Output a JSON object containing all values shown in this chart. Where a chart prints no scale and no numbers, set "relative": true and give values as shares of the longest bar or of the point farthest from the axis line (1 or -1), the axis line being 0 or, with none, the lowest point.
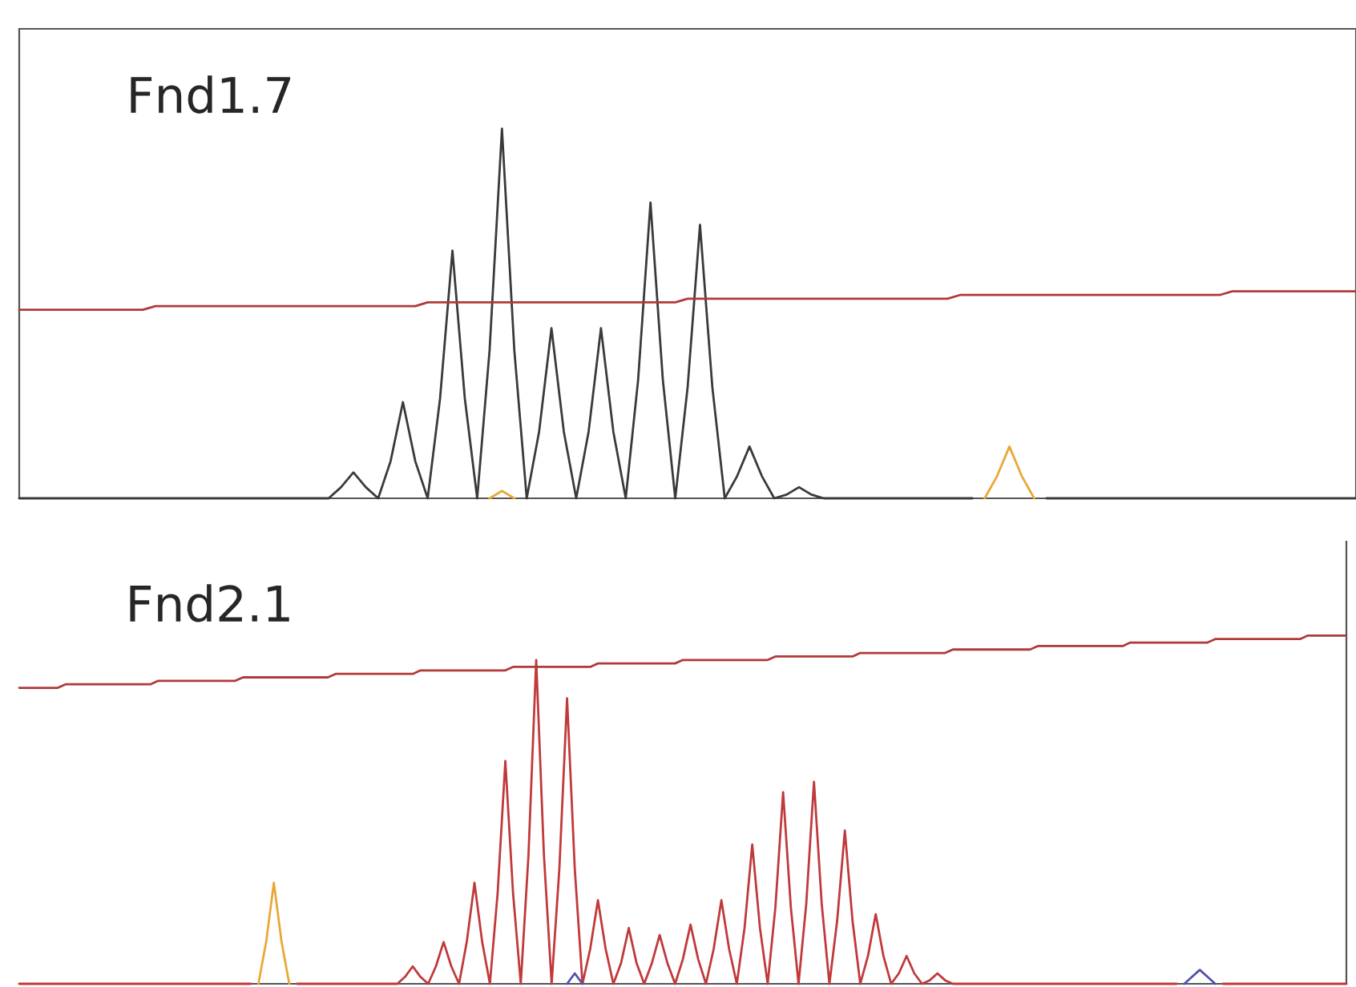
{
  "chart_data": [
    {
      "type": "line",
      "title": "Fnd1.7",
      "relative": true,
      "categories": [
        null,
        null,
        null,
        null,
        null,
        null,
        null,
        null,
        null,
        null,
        null,
        null,
        null,
        null,
        null,
        null,
        null,
        null,
        null,
        null,
        null,
        null,
        null,
        null,
        null,
        null,
        null,
        null,
        null,
        null,
        null,
        null,
        null,
        null,
        null,
        null,
        null,
        null,
        null,
        null,
        null,
        null,
        null,
        null,
        null,
        null,
        null,
        null,
        null,
        null,
        null,
        null,
        null,
        null,
        null,
        null,
        null,
        null,
        null,
        null,
        null,
        null,
        null,
        null,
        null,
        null,
        null,
        null,
        null,
        null,
        null,
        null,
        null,
        null,
        null,
        null,
        null,
        null,
        null,
        null,
        null,
        null,
        null,
        null,
        null,
        null,
        null,
        null,
        null,
        null,
        null,
        null,
        null,
        null,
        null,
        null,
        null,
        null,
        null,
        null,
        null,
        null,
        null,
        null,
        null,
        null,
        null,
        null,
        null
      ],
      "series": [
        {
          "color": "#3a3a3a",
          "values": [
            0,
            0,
            0,
            0,
            0,
            0,
            0,
            0,
            0,
            0,
            0,
            0,
            0,
            0,
            0,
            0,
            0,
            0,
            0,
            0,
            0,
            0,
            0,
            0,
            0,
            0,
            0.03,
            0.07,
            0.03,
            0,
            0.1,
            0.26,
            0.1,
            0,
            0.27,
            0.67,
            0.27,
            0,
            0.4,
            1.0,
            0.4,
            0,
            0.18,
            0.46,
            0.18,
            0,
            0.18,
            0.46,
            0.18,
            0,
            0.32,
            0.8,
            0.32,
            0,
            0.3,
            0.74,
            0.3,
            0,
            0.06,
            0.14,
            0.06,
            0,
            0.01,
            0.03,
            0.01,
            0,
            0,
            0,
            0,
            0,
            0,
            0,
            0,
            0,
            0,
            0,
            0,
            0,
            null,
            null,
            null,
            null,
            null,
            0,
            0,
            0,
            0,
            0,
            0,
            0,
            0,
            0,
            0,
            0,
            0,
            0,
            0,
            0,
            0,
            0,
            0,
            0,
            0,
            0,
            0,
            0,
            0,
            0,
            0
          ]
        },
        {
          "color": "#e8a838",
          "values": [
            null,
            null,
            null,
            null,
            null,
            null,
            null,
            null,
            null,
            null,
            null,
            null,
            null,
            null,
            null,
            null,
            null,
            null,
            null,
            null,
            null,
            null,
            null,
            null,
            null,
            null,
            null,
            null,
            null,
            null,
            null,
            null,
            null,
            null,
            null,
            null,
            null,
            null,
            0,
            0.02,
            0,
            null,
            null,
            null,
            null,
            null,
            null,
            null,
            null,
            null,
            null,
            null,
            null,
            null,
            null,
            null,
            null,
            null,
            null,
            null,
            null,
            null,
            null,
            null,
            null,
            null,
            null,
            null,
            null,
            null,
            null,
            null,
            null,
            null,
            null,
            null,
            null,
            null,
            0,
            0.06,
            0.14,
            0.06,
            0,
            null,
            null,
            null,
            null,
            null,
            null,
            null,
            null,
            null,
            null,
            null,
            null,
            null,
            null,
            null,
            null,
            null,
            null,
            null,
            null,
            null,
            null,
            null,
            null,
            null,
            null
          ]
        },
        {
          "color": "#b03a3a",
          "values": [
            0.51,
            0.51,
            0.51,
            0.51,
            0.51,
            0.51,
            0.51,
            0.51,
            0.51,
            0.51,
            0.51,
            0.52,
            0.52,
            0.52,
            0.52,
            0.52,
            0.52,
            0.52,
            0.52,
            0.52,
            0.52,
            0.52,
            0.52,
            0.52,
            0.52,
            0.52,
            0.52,
            0.52,
            0.52,
            0.52,
            0.52,
            0.52,
            0.52,
            0.53,
            0.53,
            0.53,
            0.53,
            0.53,
            0.53,
            0.53,
            0.53,
            0.53,
            0.53,
            0.53,
            0.53,
            0.53,
            0.53,
            0.53,
            0.53,
            0.53,
            0.53,
            0.53,
            0.53,
            0.53,
            0.54,
            0.54,
            0.54,
            0.54,
            0.54,
            0.54,
            0.54,
            0.54,
            0.54,
            0.54,
            0.54,
            0.54,
            0.54,
            0.54,
            0.54,
            0.54,
            0.54,
            0.54,
            0.54,
            0.54,
            0.54,
            0.54,
            0.55,
            0.55,
            0.55,
            0.55,
            0.55,
            0.55,
            0.55,
            0.55,
            0.55,
            0.55,
            0.55,
            0.55,
            0.55,
            0.55,
            0.55,
            0.55,
            0.55,
            0.55,
            0.55,
            0.55,
            0.55,
            0.55,
            0.56,
            0.56,
            0.56,
            0.56,
            0.56,
            0.56,
            0.56,
            0.56,
            0.56,
            0.56,
            0.56
          ]
        }
      ]
    },
    {
      "type": "line",
      "title": "Fnd2.1",
      "relative": true,
      "categories": [
        null,
        null,
        null,
        null,
        null,
        null,
        null,
        null,
        null,
        null,
        null,
        null,
        null,
        null,
        null,
        null,
        null,
        null,
        null,
        null,
        null,
        null,
        null,
        null,
        null,
        null,
        null,
        null,
        null,
        null,
        null,
        null,
        null,
        null,
        null,
        null,
        null,
        null,
        null,
        null,
        null,
        null,
        null,
        null,
        null,
        null,
        null,
        null,
        null,
        null,
        null,
        null,
        null,
        null,
        null,
        null,
        null,
        null,
        null,
        null,
        null,
        null,
        null,
        null,
        null,
        null,
        null,
        null,
        null,
        null,
        null,
        null,
        null,
        null,
        null,
        null,
        null,
        null,
        null,
        null,
        null,
        null,
        null,
        null,
        null,
        null,
        null,
        null,
        null,
        null,
        null,
        null,
        null,
        null,
        null,
        null,
        null,
        null,
        null,
        null,
        null,
        null,
        null,
        null,
        null,
        null,
        null,
        null,
        null,
        null,
        null,
        null,
        null,
        null,
        null,
        null,
        null,
        null,
        null,
        null,
        null,
        null,
        null,
        null,
        null,
        null,
        null,
        null,
        null,
        null,
        null,
        null,
        null,
        null,
        null,
        null,
        null,
        null,
        null,
        null,
        null,
        null,
        null,
        null,
        null,
        null,
        null,
        null,
        null,
        null,
        null,
        null,
        null,
        null,
        null,
        null,
        null,
        null,
        null,
        null,
        null,
        null,
        null,
        null,
        null,
        null,
        null,
        null,
        null,
        null,
        null,
        null,
        null
      ],
      "series": [
        {
          "color": "#c0393b",
          "values": [
            0,
            0,
            0,
            0,
            0,
            0,
            0,
            0,
            0,
            0,
            0,
            0,
            0,
            0,
            0,
            0,
            0,
            0,
            0,
            0,
            0,
            0,
            0,
            0,
            0,
            0,
            0,
            0,
            0,
            0,
            0,
            null,
            null,
            null,
            null,
            null,
            0,
            0,
            0,
            0,
            0,
            0,
            0,
            0,
            0,
            0,
            0,
            0,
            0,
            0,
            0.02,
            0.05,
            0.02,
            0,
            0.05,
            0.12,
            0.05,
            0,
            0.12,
            0.29,
            0.12,
            0,
            0.26,
            0.64,
            0.26,
            0,
            0.37,
            0.93,
            0.37,
            0,
            0.33,
            0.82,
            0.33,
            0,
            0.1,
            0.24,
            0.1,
            0,
            0.06,
            0.16,
            0.06,
            0,
            0.06,
            0.14,
            0.06,
            0,
            0.07,
            0.17,
            0.07,
            0,
            0.1,
            0.24,
            0.1,
            0,
            0.16,
            0.4,
            0.16,
            0,
            0.22,
            0.55,
            0.22,
            0,
            0.23,
            0.58,
            0.23,
            0,
            0.18,
            0.44,
            0.18,
            0,
            0.08,
            0.2,
            0.08,
            0,
            0.03,
            0.08,
            0.03,
            0,
            0.01,
            0.03,
            0.01,
            0,
            0,
            0,
            0,
            0,
            0,
            0,
            0,
            0,
            0,
            0,
            0,
            0,
            0,
            0,
            0,
            0,
            0,
            0,
            0,
            0,
            0,
            0,
            0,
            0,
            0,
            0,
            0,
            0,
            0,
            null,
            null,
            null,
            null,
            null,
            0,
            0,
            0,
            0,
            0,
            0,
            0,
            0,
            0,
            0,
            0,
            0,
            0,
            0,
            0,
            0,
            0
          ]
        },
        {
          "color": "#e8a838",
          "values": [
            null,
            null,
            null,
            null,
            null,
            null,
            null,
            null,
            null,
            null,
            null,
            null,
            null,
            null,
            null,
            null,
            null,
            null,
            null,
            null,
            null,
            null,
            null,
            null,
            null,
            null,
            null,
            null,
            null,
            null,
            null,
            0,
            0.12,
            0.29,
            0.12,
            0,
            null,
            null,
            null,
            null,
            null,
            null,
            null,
            null,
            null,
            null,
            null,
            null,
            null,
            null,
            null,
            null,
            null,
            null,
            null,
            null,
            null,
            null,
            null,
            null,
            null,
            null,
            null,
            null,
            null,
            null,
            null,
            null,
            null,
            null,
            null,
            null,
            null,
            null,
            null,
            null,
            null,
            null,
            null,
            null,
            null,
            null,
            null,
            null,
            null,
            null,
            null,
            null,
            null,
            null,
            null,
            null,
            null,
            null,
            null,
            null,
            null,
            null,
            null,
            null,
            null,
            null,
            null,
            null,
            null,
            null,
            null,
            null,
            null,
            null,
            null,
            null,
            null,
            null,
            null,
            null,
            null,
            null,
            null,
            null,
            null,
            null,
            null,
            null,
            null,
            null,
            null,
            null,
            null,
            null,
            null,
            null,
            null,
            null,
            null,
            null,
            null,
            null,
            null,
            null,
            null,
            null,
            null,
            null,
            null,
            null,
            null,
            null,
            null,
            null,
            null,
            null,
            null,
            null,
            null,
            null,
            null,
            null,
            null,
            null,
            null,
            null,
            null,
            null,
            null,
            null,
            null,
            null,
            null,
            null,
            null,
            null,
            null
          ]
        },
        {
          "color": "#5050b0",
          "values": [
            null,
            null,
            null,
            null,
            null,
            null,
            null,
            null,
            null,
            null,
            null,
            null,
            null,
            null,
            null,
            null,
            null,
            null,
            null,
            null,
            null,
            null,
            null,
            null,
            null,
            null,
            null,
            null,
            null,
            null,
            null,
            null,
            null,
            null,
            null,
            null,
            null,
            null,
            null,
            null,
            null,
            null,
            null,
            null,
            null,
            null,
            null,
            null,
            null,
            null,
            null,
            null,
            null,
            null,
            null,
            null,
            null,
            null,
            null,
            null,
            null,
            null,
            null,
            null,
            null,
            null,
            null,
            null,
            null,
            null,
            null,
            0,
            0.03,
            0,
            null,
            null,
            null,
            null,
            null,
            null,
            null,
            null,
            null,
            null,
            null,
            null,
            null,
            null,
            null,
            null,
            null,
            null,
            null,
            null,
            null,
            null,
            null,
            null,
            null,
            null,
            null,
            null,
            null,
            null,
            null,
            null,
            null,
            null,
            null,
            null,
            null,
            null,
            null,
            null,
            null,
            null,
            null,
            null,
            null,
            null,
            null,
            null,
            null,
            null,
            null,
            null,
            null,
            null,
            null,
            null,
            null,
            null,
            null,
            null,
            null,
            null,
            null,
            null,
            null,
            null,
            null,
            null,
            null,
            null,
            null,
            null,
            null,
            null,
            null,
            null,
            null,
            0,
            0.02,
            0.04,
            0.02,
            0,
            null,
            null,
            null,
            null,
            null,
            null,
            null,
            null,
            null,
            null,
            null,
            null,
            null,
            null,
            null,
            null,
            null
          ]
        },
        {
          "color": "#b03a3a",
          "values": [
            0.85,
            0.85,
            0.85,
            0.85,
            0.85,
            0.85,
            0.86,
            0.86,
            0.86,
            0.86,
            0.86,
            0.86,
            0.86,
            0.86,
            0.86,
            0.86,
            0.86,
            0.86,
            0.87,
            0.87,
            0.87,
            0.87,
            0.87,
            0.87,
            0.87,
            0.87,
            0.87,
            0.87,
            0.87,
            0.88,
            0.88,
            0.88,
            0.88,
            0.88,
            0.88,
            0.88,
            0.88,
            0.88,
            0.88,
            0.88,
            0.88,
            0.89,
            0.89,
            0.89,
            0.89,
            0.89,
            0.89,
            0.89,
            0.89,
            0.89,
            0.89,
            0.89,
            0.9,
            0.9,
            0.9,
            0.9,
            0.9,
            0.9,
            0.9,
            0.9,
            0.9,
            0.9,
            0.9,
            0.9,
            0.91,
            0.91,
            0.91,
            0.91,
            0.91,
            0.91,
            0.91,
            0.91,
            0.91,
            0.91,
            0.91,
            0.92,
            0.92,
            0.92,
            0.92,
            0.92,
            0.92,
            0.92,
            0.92,
            0.92,
            0.92,
            0.92,
            0.93,
            0.93,
            0.93,
            0.93,
            0.93,
            0.93,
            0.93,
            0.93,
            0.93,
            0.93,
            0.93,
            0.93,
            0.94,
            0.94,
            0.94,
            0.94,
            0.94,
            0.94,
            0.94,
            0.94,
            0.94,
            0.94,
            0.94,
            0.95,
            0.95,
            0.95,
            0.95,
            0.95,
            0.95,
            0.95,
            0.95,
            0.95,
            0.95,
            0.95,
            0.95,
            0.96,
            0.96,
            0.96,
            0.96,
            0.96,
            0.96,
            0.96,
            0.96,
            0.96,
            0.96,
            0.96,
            0.97,
            0.97,
            0.97,
            0.97,
            0.97,
            0.97,
            0.97,
            0.97,
            0.97,
            0.97,
            0.97,
            0.97,
            0.98,
            0.98,
            0.98,
            0.98,
            0.98,
            0.98,
            0.98,
            0.98,
            0.98,
            0.98,
            0.98,
            0.99,
            0.99,
            0.99,
            0.99,
            0.99,
            0.99,
            0.99,
            0.99,
            0.99,
            0.99,
            0.99,
            0.99,
            1.0,
            1.0,
            1.0,
            1.0,
            1.0,
            1.0
          ]
        }
      ]
    }
  ]
}
